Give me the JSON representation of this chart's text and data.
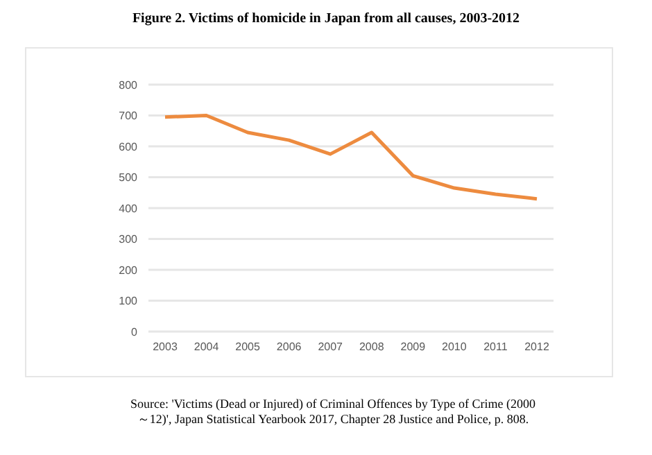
{
  "chart_data": {
    "type": "line",
    "title": "Figure 2. Victims of homicide in Japan from all causes, 2003-2012",
    "categories": [
      "2003",
      "2004",
      "2005",
      "2006",
      "2007",
      "2008",
      "2009",
      "2010",
      "2011",
      "2012"
    ],
    "series": [
      {
        "color": "#ed8b3f",
        "values": [
          695,
          700,
          645,
          620,
          575,
          645,
          505,
          465,
          445,
          430
        ]
      }
    ],
    "ylim": [
      0,
      800
    ],
    "yticks": [
      0,
      100,
      200,
      300,
      400,
      500,
      600,
      700,
      800
    ],
    "grid": "y",
    "legend": false,
    "marker": "none",
    "line_style": "solid",
    "annotations": [
      "Source: 'Victims (Dead or Injured) of Criminal Offences by Type of Crime (2000 ～12)', Japan Statistical Yearbook 2017, Chapter 28 Justice and Police, p. 808."
    ]
  }
}
